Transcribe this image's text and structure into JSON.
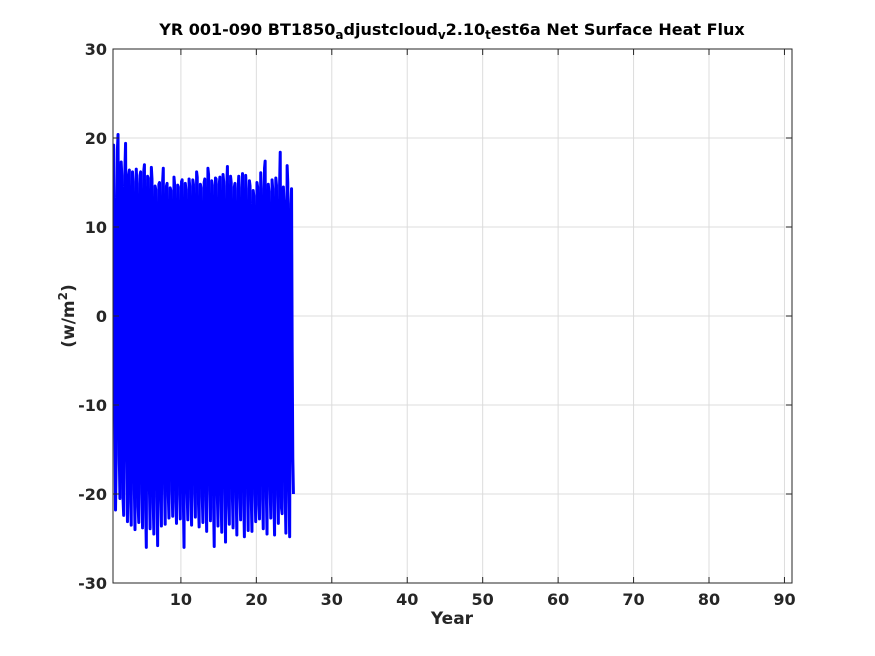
{
  "chart_data": {
    "type": "line",
    "title": {
      "parts": [
        {
          "text": "YR 001-090 BT1850",
          "sub": false
        },
        {
          "text": "a",
          "sub": true
        },
        {
          "text": "djustcloud",
          "sub": false
        },
        {
          "text": "v",
          "sub": true
        },
        {
          "text": "2.10",
          "sub": false
        },
        {
          "text": "t",
          "sub": true
        },
        {
          "text": "est6a Net Surface Heat Flux",
          "sub": false
        }
      ]
    },
    "xlabel": "Year",
    "ylabel": {
      "base": "(w/m",
      "sup": "2",
      "close": ")"
    },
    "xlim": [
      1,
      91
    ],
    "ylim": [
      -30,
      30
    ],
    "xticks": [
      10,
      20,
      30,
      40,
      50,
      60,
      70,
      80,
      90
    ],
    "yticks": [
      -30,
      -20,
      -10,
      0,
      10,
      20,
      30
    ],
    "grid": true,
    "line_color": "#0000ff",
    "series": [
      {
        "x_start": 1.0,
        "x_step": 0.08333,
        "samples_per_year": 12,
        "values": [
          -1.2,
          19.2,
          12.5,
          -9.4,
          -21.8,
          -16.5,
          3.2,
          18.7,
          20.4,
          2.9,
          -15.6,
          -20.5,
          -3.5,
          17.3,
          15.8,
          -2.6,
          -20.6,
          -22.4,
          3.8,
          16.6,
          19.4,
          5.2,
          -16.2,
          -23.1,
          -4.1,
          15.9,
          16.4,
          -1.8,
          -20.9,
          -23.5,
          2.4,
          16.2,
          15.1,
          -0.3,
          -19.5,
          -24.0,
          -2.8,
          16.5,
          14.9,
          -3.1,
          -21.4,
          -23.2,
          1.9,
          15.8,
          16.2,
          0.8,
          -19.8,
          -23.8,
          -3.3,
          16.3,
          17.0,
          -1.7,
          -21.8,
          -26.0,
          2.6,
          15.7,
          15.5,
          1.2,
          -19.6,
          -23.9,
          -3.6,
          16.7,
          15.4,
          -2.2,
          -21.0,
          -24.5,
          2.3,
          14.6,
          14.2,
          0.5,
          -20.3,
          -25.8,
          -2.9,
          14.8,
          15.0,
          -1.5,
          -20.7,
          -23.6,
          3.1,
          15.2,
          16.6,
          0.2,
          -19.4,
          -23.4,
          -2.7,
          14.6,
          14.9,
          -2.0,
          -20.2,
          -22.7,
          1.8,
          14.4,
          14.1,
          0.9,
          -19.7,
          -22.5,
          -3.2,
          15.6,
          14.8,
          -1.6,
          -20.9,
          -23.3,
          2.2,
          14.7,
          14.5,
          0.4,
          -20.1,
          -22.8,
          -2.5,
          15.1,
          15.3,
          -1.9,
          -21.2,
          -26.0,
          1.6,
          14.9,
          14.2,
          1.1,
          -19.9,
          -22.9,
          -3.0,
          15.4,
          14.6,
          -2.3,
          -20.4,
          -23.5,
          2.7,
          15.3,
          14.8,
          0.6,
          -20.0,
          -22.6,
          -2.6,
          16.2,
          15.6,
          -1.4,
          -21.1,
          -23.7,
          1.7,
          14.8,
          14.4,
          0.7,
          -20.3,
          -23.2,
          -2.4,
          15.0,
          15.4,
          -2.1,
          -20.6,
          -24.2,
          2.8,
          16.6,
          15.9,
          0.3,
          -19.6,
          -23.0,
          -3.4,
          15.2,
          14.7,
          -1.8,
          -21.5,
          -25.9,
          2.0,
          15.5,
          15.4,
          1.0,
          -20.2,
          -23.6,
          -2.9,
          14.8,
          15.6,
          -2.4,
          -20.8,
          -24.3,
          2.5,
          15.9,
          15.1,
          0.5,
          -19.8,
          -25.4,
          -3.1,
          14.6,
          16.8,
          -1.3,
          -21.3,
          -23.4,
          1.9,
          15.7,
          15.0,
          0.8,
          -20.5,
          -23.8,
          -2.7,
          14.5,
          14.9,
          -2.0,
          -20.1,
          -24.6,
          2.3,
          14.3,
          15.7,
          0.4,
          -20.4,
          -22.9,
          -3.5,
          14.4,
          16.0,
          -1.6,
          -21.0,
          -24.8,
          2.6,
          15.8,
          14.3,
          0.9,
          -19.9,
          -24.1,
          -2.8,
          15.2,
          14.6,
          -2.2,
          -20.7,
          -24.2,
          2.1,
          14.1,
          13.5,
          1.3,
          -20.0,
          -23.1,
          -3.2,
          15.0,
          14.5,
          -1.5,
          -21.2,
          -22.8,
          2.4,
          16.1,
          14.3,
          0.6,
          -20.6,
          -23.9,
          -2.6,
          16.6,
          17.4,
          -1.7,
          -20.3,
          -24.5,
          1.8,
          14.8,
          14.0,
          0.2,
          -19.5,
          -22.7,
          -3.0,
          15.3,
          14.3,
          -2.5,
          -20.9,
          -24.6,
          2.9,
          15.5,
          14.7,
          1.1,
          -20.1,
          -23.3,
          -3.3,
          14.7,
          18.4,
          -1.9,
          -21.6,
          -22.2,
          2.2,
          14.5,
          13.0,
          0.7,
          -20.4,
          -24.4,
          -2.5,
          16.9,
          15.0,
          -2.1,
          -19.7,
          -24.8,
          3.0,
          12.6,
          14.3,
          -4.0,
          -16.0,
          -20.0
        ]
      }
    ]
  }
}
